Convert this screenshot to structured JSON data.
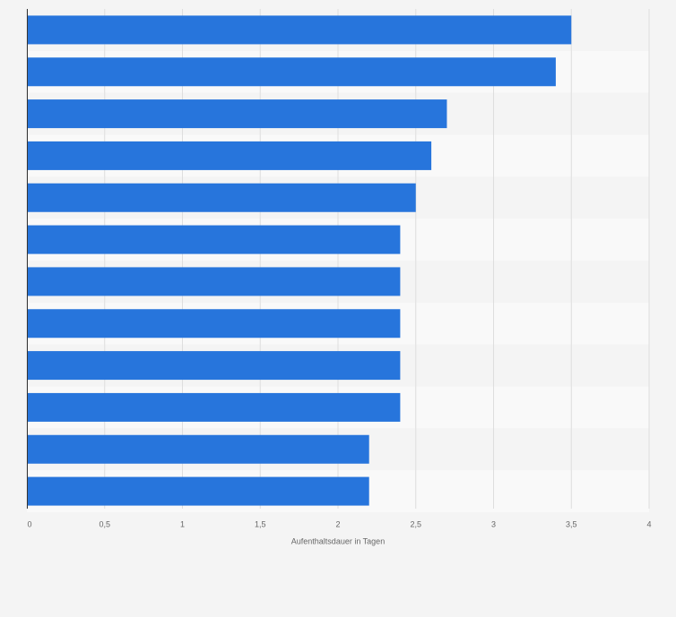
{
  "chart_data": {
    "type": "bar",
    "orientation": "horizontal",
    "x_label": "Aufenthaltsdauer in Tagen",
    "categories": [
      null,
      null,
      null,
      null,
      null,
      null,
      null,
      null,
      null,
      null,
      null,
      null
    ],
    "values": [
      3.5,
      3.4,
      2.7,
      2.6,
      2.5,
      2.4,
      2.4,
      2.4,
      2.4,
      2.4,
      2.2,
      2.2
    ],
    "color": "#2775dc",
    "xlim": [
      0,
      4
    ],
    "xticks": [
      0,
      {
        "value": 0.5,
        "label": "0,5"
      },
      1,
      {
        "value": 1.5,
        "label": "1,5"
      },
      2,
      {
        "value": 2.5,
        "label": "2,5"
      },
      3,
      {
        "value": 3.5,
        "label": "3,5"
      },
      4
    ],
    "grid": true
  }
}
